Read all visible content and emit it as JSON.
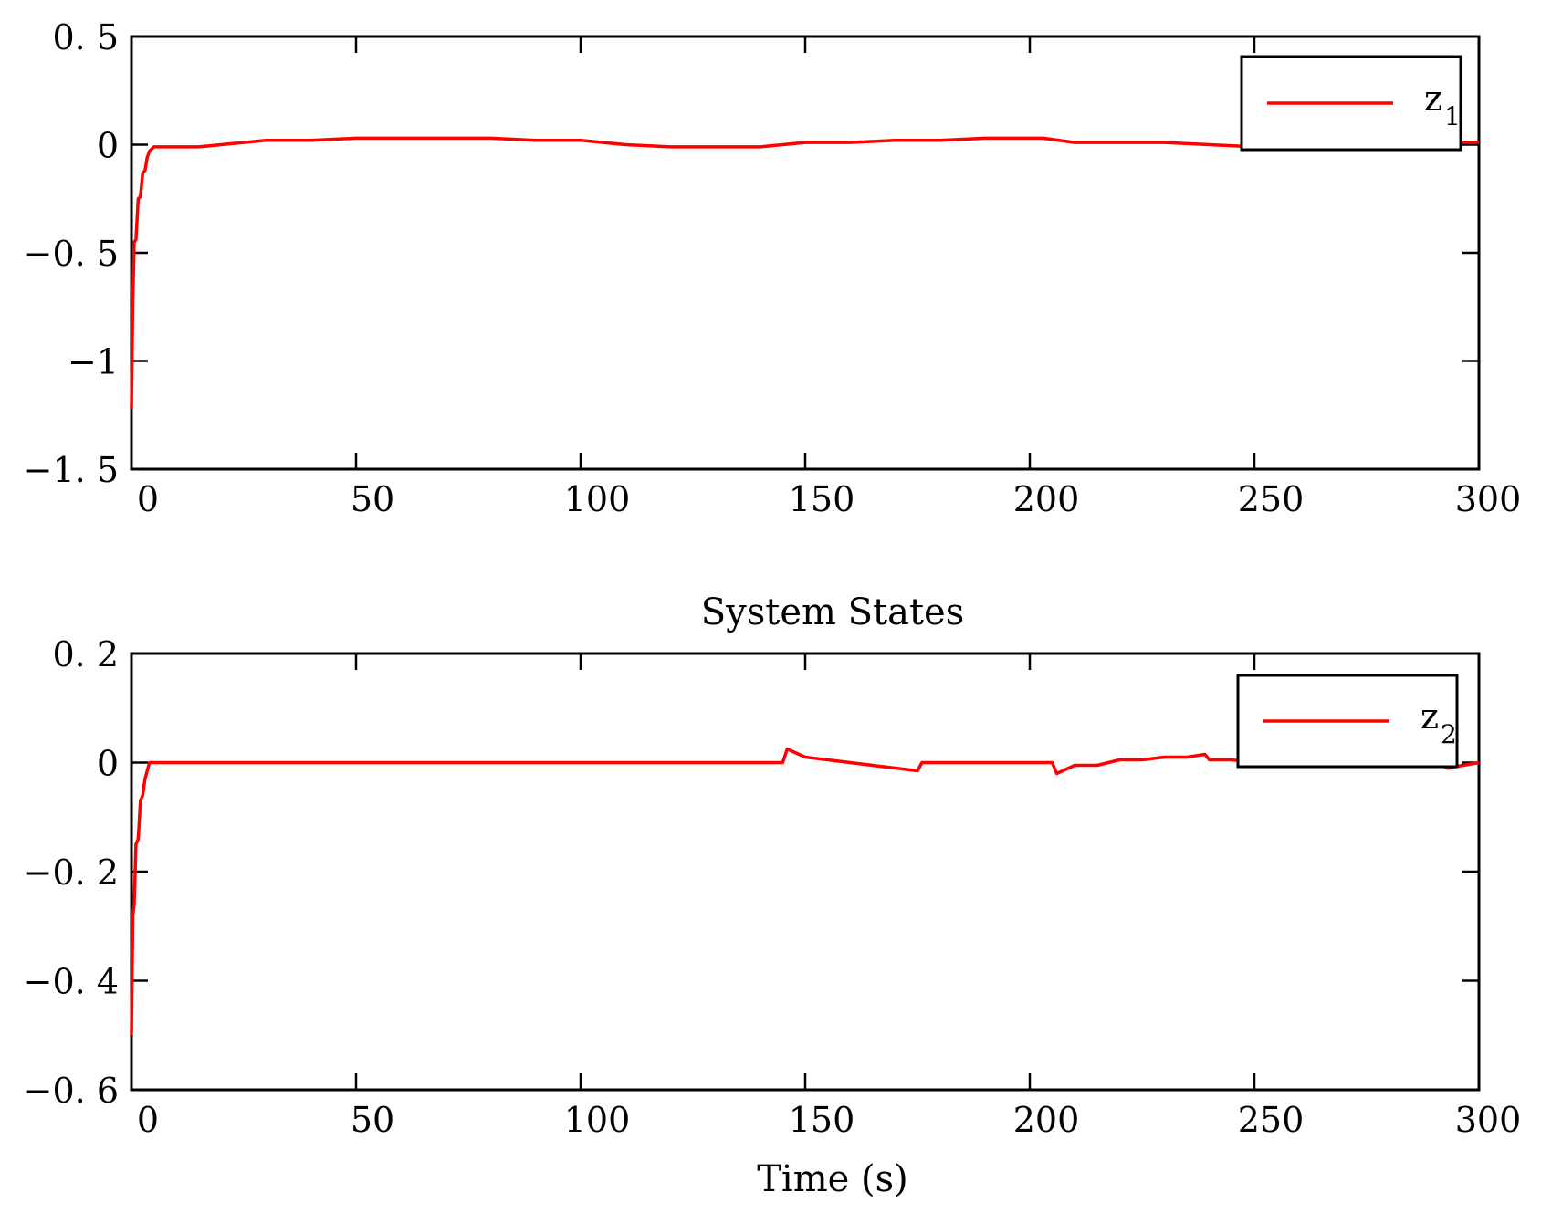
{
  "figure": {
    "shared_title": "System States",
    "xlabel": "Time (s)"
  },
  "chart_data": [
    {
      "type": "line",
      "title": "",
      "xlabel": "",
      "ylabel": "",
      "xlim": [
        0,
        300
      ],
      "ylim": [
        -1.5,
        0.5
      ],
      "x_ticks": [
        0,
        50,
        100,
        150,
        200,
        250,
        300
      ],
      "x_tick_labels": [
        "0",
        "50",
        "100",
        "150",
        "200",
        "250",
        "300"
      ],
      "y_ticks": [
        0.5,
        0,
        -0.5,
        -1,
        -1.5
      ],
      "y_tick_labels": [
        "0. 5",
        "0",
        "−0. 5",
        "−1",
        "−1. 5"
      ],
      "grid": false,
      "legend": {
        "position": "top-right",
        "entries": [
          {
            "label": "z",
            "subscript": "1"
          }
        ]
      },
      "series": [
        {
          "label": "z1",
          "color": "#ff0000",
          "x": [
            0,
            0.3,
            0.6,
            1,
            1.5,
            2,
            2.5,
            3,
            3.5,
            4,
            5,
            6,
            8,
            10,
            15,
            20,
            30,
            40,
            50,
            60,
            70,
            80,
            90,
            100,
            110,
            120,
            130,
            140,
            150,
            160,
            170,
            180,
            190,
            200,
            203,
            210,
            220,
            230,
            240,
            250,
            260,
            270,
            280,
            290,
            300
          ],
          "y": [
            -1.22,
            -0.72,
            -0.45,
            -0.44,
            -0.25,
            -0.24,
            -0.13,
            -0.12,
            -0.06,
            -0.03,
            -0.01,
            -0.01,
            -0.01,
            -0.01,
            -0.01,
            0.0,
            0.02,
            0.02,
            0.03,
            0.03,
            0.03,
            0.03,
            0.02,
            0.02,
            0.0,
            -0.01,
            -0.01,
            -0.01,
            0.01,
            0.01,
            0.02,
            0.02,
            0.03,
            0.03,
            0.03,
            0.01,
            0.01,
            0.01,
            0.0,
            -0.01,
            -0.01,
            0.0,
            0.0,
            0.01,
            0.01
          ]
        }
      ]
    },
    {
      "type": "line",
      "title": "System States",
      "xlabel": "Time (s)",
      "ylabel": "",
      "xlim": [
        0,
        300
      ],
      "ylim": [
        -0.6,
        0.2
      ],
      "x_ticks": [
        0,
        50,
        100,
        150,
        200,
        250,
        300
      ],
      "x_tick_labels": [
        "0",
        "50",
        "100",
        "150",
        "200",
        "250",
        "300"
      ],
      "y_ticks": [
        0.2,
        0,
        -0.2,
        -0.4,
        -0.6
      ],
      "y_tick_labels": [
        "0. 2",
        "0",
        "−0. 2",
        "−0. 4",
        "−0. 6"
      ],
      "grid": false,
      "legend": {
        "position": "top-right",
        "entries": [
          {
            "label": "z",
            "subscript": "2"
          }
        ]
      },
      "series": [
        {
          "label": "z2",
          "color": "#ff0000",
          "x": [
            0,
            0.3,
            0.6,
            1,
            1.5,
            2,
            2.5,
            3,
            4,
            5,
            10,
            20,
            30,
            40,
            50,
            60,
            80,
            100,
            120,
            140,
            145,
            146,
            150,
            155,
            160,
            165,
            170,
            175,
            176,
            180,
            190,
            200,
            205,
            206,
            210,
            215,
            220,
            225,
            230,
            235,
            239,
            240,
            245,
            250,
            260,
            270,
            280,
            290,
            293,
            300
          ],
          "y": [
            -0.5,
            -0.28,
            -0.26,
            -0.15,
            -0.14,
            -0.07,
            -0.06,
            -0.03,
            0.0,
            0.0,
            0.0,
            0.0,
            0.0,
            0.0,
            0.0,
            0.0,
            0.0,
            0.0,
            0.0,
            0.0,
            0.0,
            0.025,
            0.01,
            0.005,
            0.0,
            -0.005,
            -0.01,
            -0.015,
            0.0,
            0.0,
            0.0,
            0.0,
            0.0,
            -0.02,
            -0.005,
            -0.005,
            0.005,
            0.005,
            0.01,
            0.01,
            0.015,
            0.005,
            0.005,
            0.0,
            0.0,
            0.0,
            0.0,
            0.0,
            -0.01,
            0.0
          ]
        }
      ]
    }
  ]
}
